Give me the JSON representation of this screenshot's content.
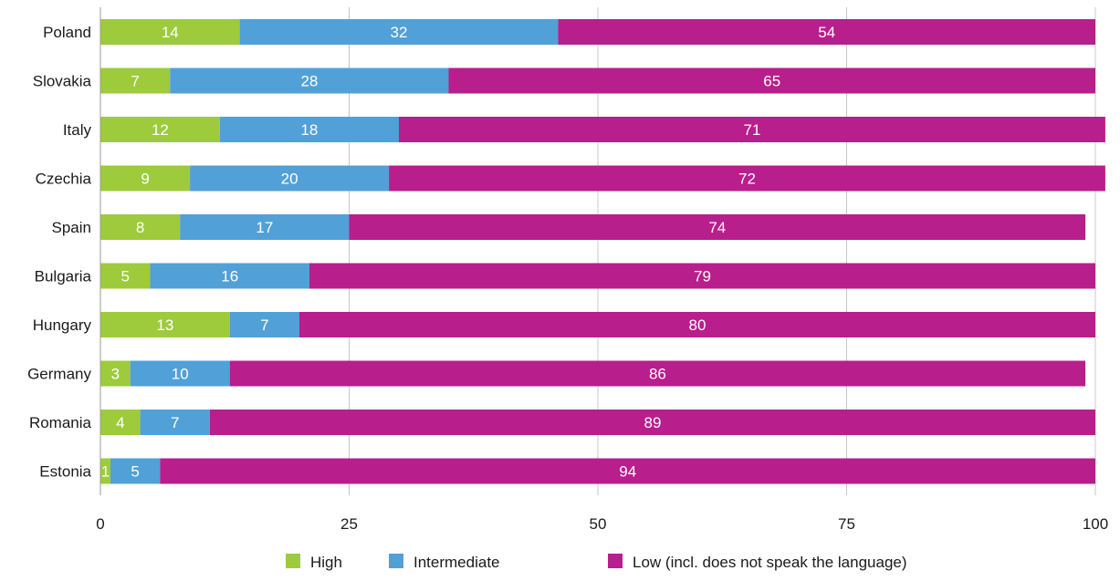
{
  "chart_data": {
    "type": "bar",
    "orientation": "horizontal",
    "stacked": true,
    "categories": [
      "Poland",
      "Slovakia",
      "Italy",
      "Czechia",
      "Spain",
      "Bulgaria",
      "Hungary",
      "Germany",
      "Romania",
      "Estonia"
    ],
    "series": [
      {
        "name": "High",
        "color": "#9dcb3c",
        "values": [
          14,
          7,
          12,
          9,
          8,
          5,
          13,
          3,
          4,
          1
        ]
      },
      {
        "name": "Intermediate",
        "color": "#52a0d8",
        "values": [
          32,
          28,
          18,
          20,
          17,
          16,
          7,
          10,
          7,
          5
        ]
      },
      {
        "name": "Low (incl. does not speak the language)",
        "color": "#b81e8c",
        "values": [
          54,
          65,
          71,
          72,
          74,
          79,
          80,
          86,
          89,
          94
        ]
      }
    ],
    "x_ticks": [
      0,
      25,
      50,
      75,
      100
    ],
    "xlim": [
      0,
      100
    ],
    "grid": true,
    "legend_position": "bottom"
  }
}
